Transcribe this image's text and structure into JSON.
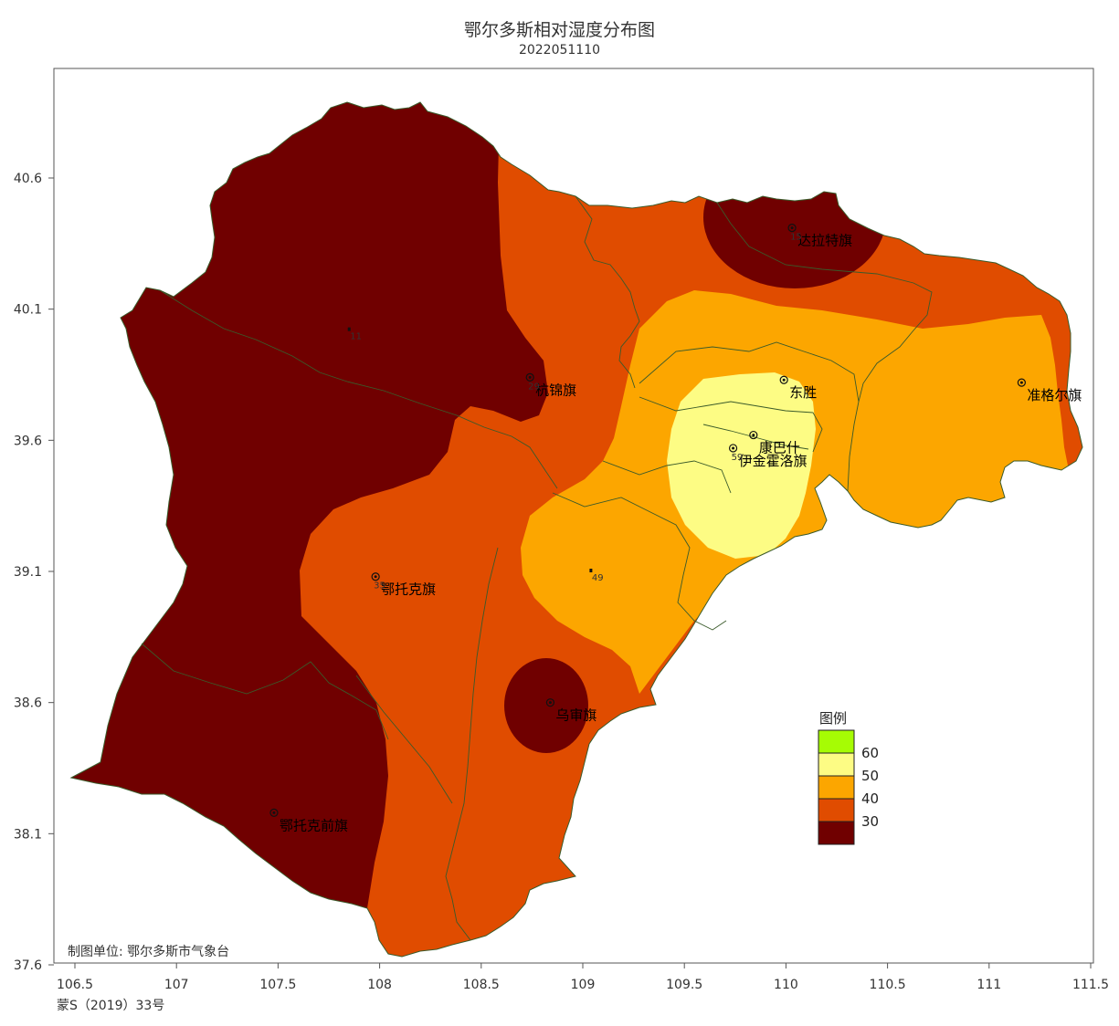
{
  "map": {
    "title": "鄂尔多斯相对湿度分布图",
    "subtitle": "2022051110",
    "credit": "制图单位: 鄂尔多斯市气象台",
    "approval": "蒙S（2019）33号",
    "x_ticks": [
      "106.5",
      "107",
      "107.5",
      "108",
      "108.5",
      "109",
      "109.5",
      "110",
      "110.5",
      "111",
      "111.5"
    ],
    "y_ticks": [
      "40.6",
      "40.1",
      "39.6",
      "39.1",
      "38.6",
      "38.1",
      "37.6"
    ],
    "x_range": [
      106.5,
      111.5
    ],
    "y_range": [
      37.6,
      40.9
    ],
    "colors": {
      "below30": "#700000",
      "30to40": "#e04c00",
      "40to50": "#fca600",
      "50to60": "#fdfc84",
      "above60": "#a6fc04",
      "boundary": "#3a5a2a"
    },
    "legend": {
      "title": "图例",
      "levels": [
        "60",
        "50",
        "40",
        "30"
      ]
    },
    "stations": [
      {
        "name": "达拉特旗",
        "value": "15",
        "lon": 110.03,
        "lat": 40.41
      },
      {
        "name": "杭锦旗",
        "value": "29",
        "lon": 108.74,
        "lat": 39.84
      },
      {
        "name": "东胜",
        "value": "",
        "lon": 109.99,
        "lat": 39.83
      },
      {
        "name": "准格尔旗",
        "value": "",
        "lon": 111.16,
        "lat": 39.82
      },
      {
        "name": "康巴什",
        "value": "",
        "lon": 109.84,
        "lat": 39.62
      },
      {
        "name": "伊金霍洛旗",
        "value": "59",
        "lon": 109.74,
        "lat": 39.57
      },
      {
        "name": "鄂托克旗",
        "value": "35",
        "lon": 107.98,
        "lat": 39.08
      },
      {
        "name": "乌审旗",
        "value": "",
        "lon": 108.84,
        "lat": 38.6
      },
      {
        "name": "鄂托克前旗",
        "value": "",
        "lon": 107.48,
        "lat": 38.18
      }
    ],
    "extra_values": [
      {
        "value": "11",
        "lon": 107.85,
        "lat": 40.02
      },
      {
        "value": "49",
        "lon": 109.04,
        "lat": 39.1
      }
    ]
  }
}
